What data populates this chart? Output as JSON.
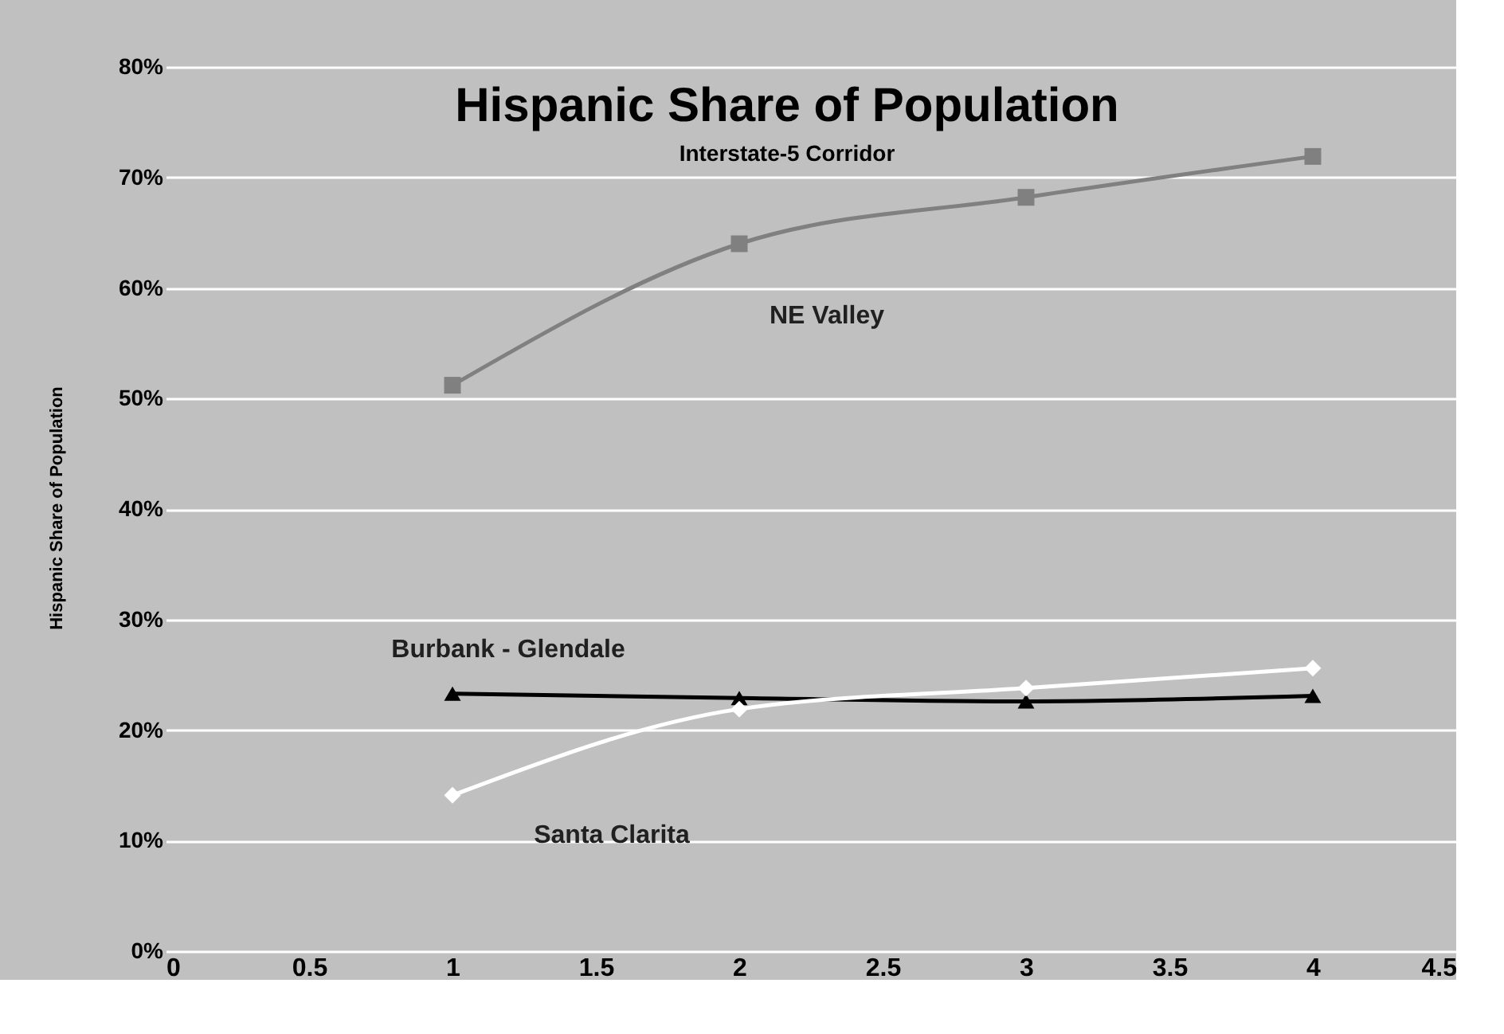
{
  "chart_data": {
    "type": "line",
    "title": "Hispanic Share of Population",
    "subtitle": "Interstate-5 Corridor",
    "ylabel": "Hispanic Share of Population",
    "x": [
      1,
      2,
      3,
      4
    ],
    "series": [
      {
        "name": "NE Valley",
        "color": "#808080",
        "marker": "square",
        "values": [
          51.2,
          64.0,
          68.2,
          71.9
        ]
      },
      {
        "name": "Burbank - Glendale",
        "color": "#000000",
        "marker": "triangle",
        "values": [
          23.3,
          22.9,
          22.6,
          23.1
        ]
      },
      {
        "name": "Santa Clarita",
        "color": "#ffffff",
        "marker": "diamond",
        "values": [
          14.1,
          21.9,
          23.8,
          25.6
        ]
      }
    ],
    "xlim": [
      0,
      4.5
    ],
    "xticks": [
      0,
      0.5,
      1,
      1.5,
      2,
      2.5,
      3,
      3.5,
      4,
      4.5
    ],
    "ylim": [
      0,
      80
    ],
    "yticks": [
      {
        "value": 0,
        "label": "0%"
      },
      {
        "value": 10,
        "label": "10%"
      },
      {
        "value": 20,
        "label": "20%"
      },
      {
        "value": 30,
        "label": "30%"
      },
      {
        "value": 40,
        "label": "40%"
      },
      {
        "value": 50,
        "label": "50%"
      },
      {
        "value": 60,
        "label": "60%"
      },
      {
        "value": 70,
        "label": "70%"
      },
      {
        "value": 80,
        "label": "80%"
      }
    ],
    "grid": "y"
  }
}
